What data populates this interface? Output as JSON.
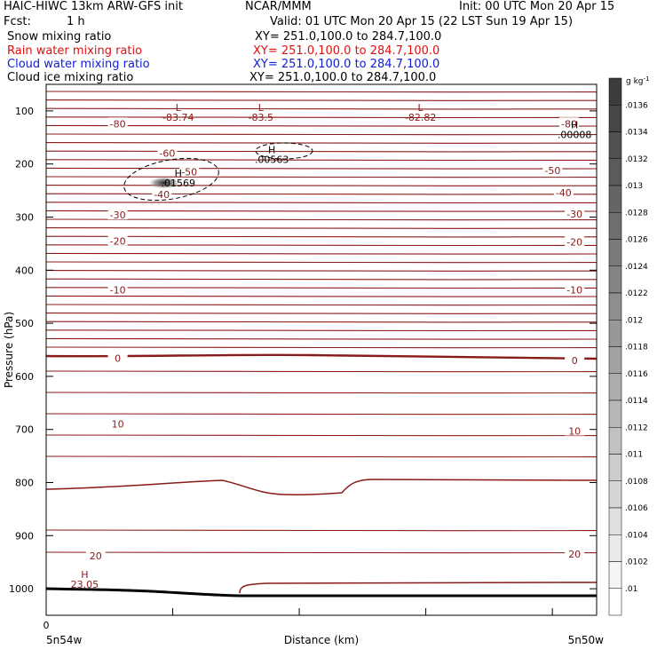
{
  "header": {
    "model": "HAIC-HIWC 13km ARW-GFS init",
    "org": "NCAR/MMM",
    "init": "Init: 00 UTC Mon 20 Apr 15",
    "fcst_label": "Fcst:",
    "fcst_value": "1 h",
    "valid": "Valid: 01 UTC Mon 20 Apr 15 (22 LST Sun 19 Apr 15)"
  },
  "fields": [
    {
      "name": "Snow mixing ratio",
      "xy": "XY= 251.0,100.0 to 284.7,100.0",
      "color": "#000000"
    },
    {
      "name": "Rain water mixing ratio",
      "xy": "XY= 251.0,100.0 to 284.7,100.0",
      "color": "#e01010"
    },
    {
      "name": "Cloud water mixing ratio",
      "xy": "XY= 251.0,100.0 to 284.7,100.0",
      "color": "#1020d0"
    },
    {
      "name": "Cloud ice mixing ratio",
      "xy": "XY= 251.0,100.0 to 284.7,100.0",
      "color": "#000000"
    }
  ],
  "colors": {
    "temperature": "#8b1a1a",
    "ground": "#000000",
    "axis": "#000000"
  },
  "chart_data": {
    "type": "contour",
    "ylabel": "Pressure (hPa)",
    "xlabel": "Distance (km)",
    "x_tick_labels": [
      "0"
    ],
    "x_left_label": "5n54w",
    "x_right_label": "5n50w",
    "y_ticks": [
      100,
      200,
      300,
      400,
      500,
      600,
      700,
      800,
      900,
      1000
    ],
    "ylim": [
      50,
      1050
    ],
    "colorbar": {
      "unit": "g kg",
      "unit_exp": "-1",
      "tick_labels": [
        ".0136",
        ".0134",
        ".0132",
        ".013",
        ".0128",
        ".0126",
        ".0124",
        ".0122",
        ".012",
        ".0118",
        ".0116",
        ".0114",
        ".0112",
        ".011",
        ".0108",
        ".0106",
        ".0104",
        ".0102",
        ".01"
      ]
    },
    "temperature_labels": [
      {
        "text": "-80",
        "p": 124,
        "pos": 0.13
      },
      {
        "text": "-80",
        "p": 124,
        "pos": 0.95
      },
      {
        "text": "-60",
        "p": 180,
        "pos": 0.22
      },
      {
        "text": "-50",
        "p": 215,
        "pos": 0.26
      },
      {
        "text": "-50",
        "p": 212,
        "pos": 0.92
      },
      {
        "text": "-40",
        "p": 257,
        "pos": 0.21
      },
      {
        "text": "-40",
        "p": 254,
        "pos": 0.94
      },
      {
        "text": "-30",
        "p": 296,
        "pos": 0.13
      },
      {
        "text": "-30",
        "p": 294,
        "pos": 0.96
      },
      {
        "text": "-20",
        "p": 345,
        "pos": 0.13
      },
      {
        "text": "-20",
        "p": 347,
        "pos": 0.96
      },
      {
        "text": "-10",
        "p": 437,
        "pos": 0.13
      },
      {
        "text": "-10",
        "p": 437,
        "pos": 0.96
      },
      {
        "text": "0",
        "p": 566,
        "pos": 0.13
      },
      {
        "text": "0",
        "p": 570,
        "pos": 0.96
      },
      {
        "text": "10",
        "p": 690,
        "pos": 0.13
      },
      {
        "text": "10",
        "p": 703,
        "pos": 0.96
      },
      {
        "text": "20",
        "p": 938,
        "pos": 0.09
      },
      {
        "text": "20",
        "p": 935,
        "pos": 0.96
      }
    ],
    "extrema": [
      {
        "letter": "L",
        "value": "-83.74",
        "p": 100,
        "pos": 0.24
      },
      {
        "letter": "L",
        "value": "-83.5",
        "p": 100,
        "pos": 0.39
      },
      {
        "letter": "L",
        "value": "-82.82",
        "p": 100,
        "pos": 0.68
      },
      {
        "letter": "H",
        "value": ".00008",
        "p": 133,
        "pos": 0.96
      },
      {
        "letter": "H",
        "value": ".00563",
        "p": 180,
        "pos": 0.41
      },
      {
        "letter": "H",
        "value": ".01569",
        "p": 224,
        "pos": 0.24
      },
      {
        "letter": "H",
        "value": "23.05",
        "p": 980,
        "pos": 0.07
      }
    ]
  }
}
